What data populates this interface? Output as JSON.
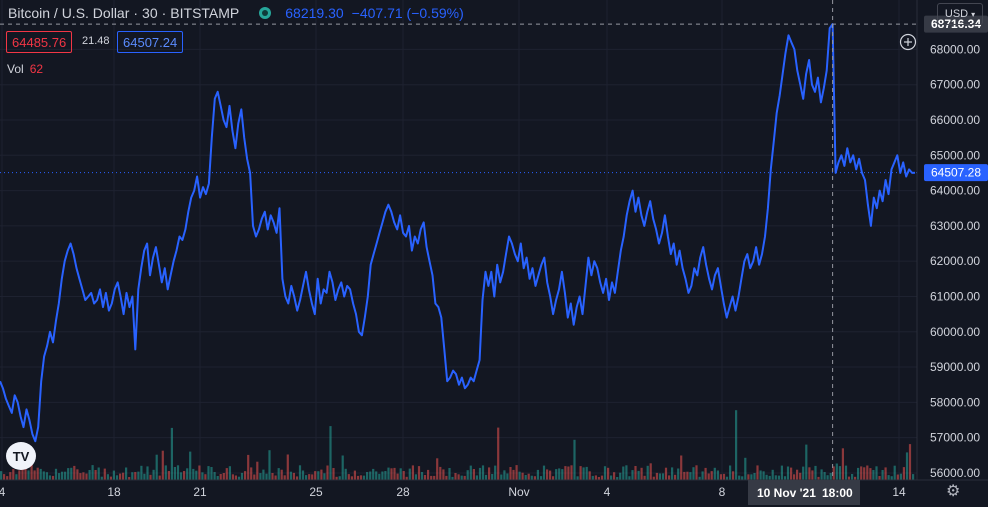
{
  "legend": {
    "symbol": "Bitcoin / U.S. Dollar",
    "interval": "30",
    "exchange": "BITSTAMP",
    "last": "68219.30",
    "change": "−407.71 (−0.59%)"
  },
  "quote": {
    "bid": "64485.76",
    "spread": "21.48",
    "ask": "64507.24"
  },
  "volume": {
    "label": "Vol",
    "value": "62"
  },
  "currency": "USD",
  "crosshair": {
    "price_label": "68716.34",
    "date_label": "10 Nov '21",
    "time_label": "18:00"
  },
  "current_price_label": "64507.28",
  "logo_text": "TV",
  "colors": {
    "background": "#131722",
    "line": "#2962ff",
    "volume_up": "#26a69a",
    "volume_down": "#ef5350",
    "grid": "#1e2230",
    "text": "#d1d4dc"
  },
  "chart_data": {
    "type": "line",
    "title": "",
    "xlabel": "",
    "ylabel": "",
    "x_tick_labels": [
      "4",
      "18",
      "21",
      "25",
      "28",
      "Nov",
      "4",
      "8",
      "14"
    ],
    "y_tick_labels": [
      "56000.00",
      "57000.00",
      "58000.00",
      "59000.00",
      "60000.00",
      "61000.00",
      "62000.00",
      "63000.00",
      "64000.00",
      "65000.00",
      "66000.00",
      "67000.00",
      "68000.00"
    ],
    "ylim": [
      55800,
      69400
    ],
    "current_price": 64507.28,
    "crosshair_price": 68716.34,
    "grid": true,
    "series": [
      {
        "values": [
          58600,
          58400,
          58100,
          57900,
          57700,
          58200,
          58000,
          57600,
          57300,
          57800,
          57500,
          57100,
          56900,
          57300,
          58600,
          59300,
          59600,
          60000,
          59700,
          60300,
          60800,
          61500,
          62000,
          62300,
          62500,
          62200,
          61800,
          61500,
          61200,
          60900,
          61000,
          61100,
          60800,
          60900,
          61200,
          60700,
          61100,
          60600,
          60800,
          61200,
          61400,
          61000,
          60500,
          61100,
          60700,
          61000,
          59500,
          61200,
          61800,
          62300,
          62500,
          61600,
          62100,
          62400,
          61900,
          61400,
          61800,
          61200,
          61600,
          62000,
          62300,
          62700,
          62600,
          62900,
          63400,
          63800,
          64000,
          64400,
          63800,
          64100,
          63900,
          64200,
          65500,
          66600,
          66800,
          66400,
          66000,
          65800,
          66400,
          65700,
          65200,
          65900,
          66300,
          65500,
          64900,
          64500,
          63000,
          62700,
          62900,
          63200,
          63400,
          62900,
          63300,
          63100,
          62800,
          63500,
          61500,
          61000,
          60800,
          61300,
          61000,
          60600,
          60900,
          61300,
          61700,
          61200,
          60800,
          60500,
          61500,
          60800,
          61200,
          61100,
          61700,
          61400,
          60900,
          61200,
          61400,
          61000,
          61300,
          61200,
          60800,
          60500,
          60000,
          59900,
          60400,
          61000,
          61900,
          62200,
          62500,
          62800,
          63100,
          63400,
          63600,
          63400,
          63100,
          62900,
          63300,
          62800,
          62700,
          63000,
          62300,
          62700,
          62500,
          62900,
          63100,
          62400,
          62000,
          61600,
          60800,
          60700,
          60400,
          59500,
          58600,
          58700,
          58900,
          58800,
          58500,
          58700,
          58400,
          58500,
          58700,
          58600,
          58900,
          59200,
          60900,
          61700,
          61300,
          61700,
          61000,
          61900,
          61400,
          61700,
          62200,
          62700,
          62500,
          62200,
          62000,
          62500,
          61800,
          62100,
          61500,
          61800,
          61300,
          61600,
          61900,
          62100,
          61400,
          61000,
          60500,
          60900,
          61200,
          61700,
          61100,
          60400,
          60800,
          60200,
          60700,
          61000,
          60500,
          61300,
          62100,
          61600,
          62000,
          61800,
          61400,
          61100,
          61500,
          60900,
          61400,
          61100,
          61700,
          62300,
          62700,
          63300,
          63700,
          64000,
          63400,
          63800,
          63300,
          63000,
          63400,
          63700,
          63200,
          62900,
          62500,
          62800,
          63300,
          62700,
          62200,
          62500,
          61900,
          62300,
          61800,
          61500,
          61100,
          61300,
          61800,
          61600,
          62100,
          62400,
          61900,
          61500,
          61200,
          61600,
          61800,
          61300,
          60800,
          60400,
          60700,
          61000,
          60600,
          61000,
          61500,
          62000,
          62200,
          61800,
          62000,
          62400,
          61900,
          62200,
          62700,
          63500,
          64600,
          65400,
          66200,
          66700,
          67300,
          67900,
          68400,
          68200,
          68000,
          67400,
          67000,
          66600,
          67300,
          67700,
          67000,
          66800,
          67200,
          66500,
          66900,
          67400,
          68600,
          68716,
          64500,
          64800,
          65000,
          64700,
          65200,
          64800,
          65000,
          64600,
          64900,
          64500,
          64300,
          63600,
          63000,
          63800,
          63500,
          64000,
          63700,
          64300,
          63900,
          64600,
          64800,
          65000,
          64500,
          64800,
          64400,
          64600,
          64500,
          64507
        ]
      }
    ]
  }
}
